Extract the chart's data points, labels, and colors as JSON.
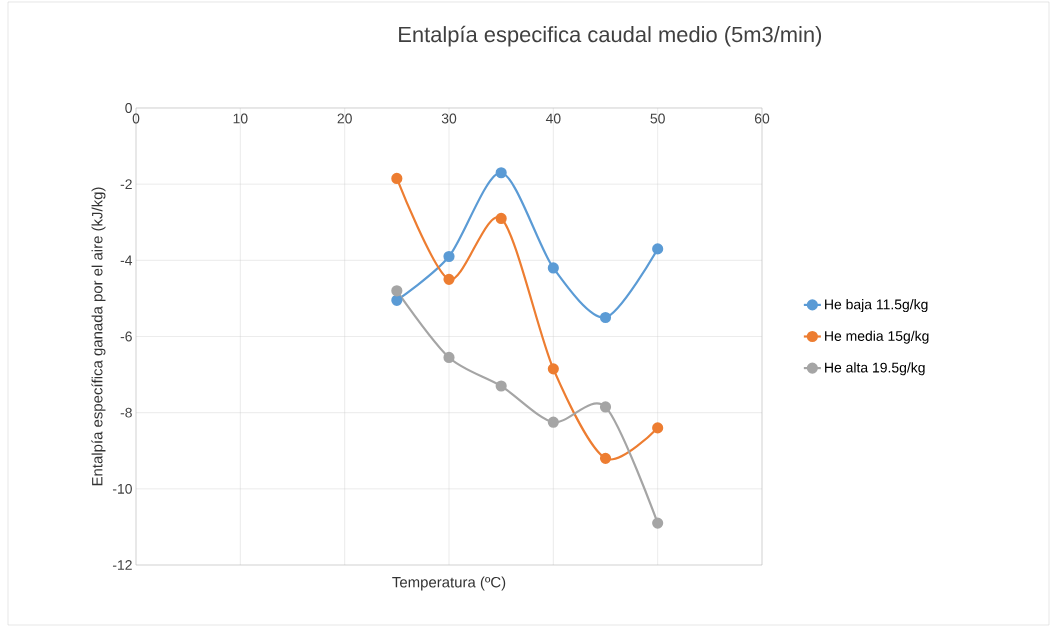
{
  "chart_data": {
    "type": "line",
    "title": "Entalpía especifica caudal medio (5m3/min)",
    "xlabel": "Temperatura (ºC)",
    "ylabel": "Entalpía específica ganada por el aire (kJ/kg)",
    "x": [
      25,
      30,
      35,
      40,
      45,
      50
    ],
    "series": [
      {
        "name": "He baja 11.5g/kg",
        "color": "#5b9bd5",
        "values": [
          -5.05,
          -3.9,
          -1.7,
          -4.2,
          -5.5,
          -3.7
        ]
      },
      {
        "name": "He media 15g/kg",
        "color": "#ed7d31",
        "values": [
          -1.85,
          -4.5,
          -2.9,
          -6.85,
          -9.2,
          -8.4
        ]
      },
      {
        "name": "He alta 19.5g/kg",
        "color": "#a5a5a5",
        "values": [
          -4.8,
          -6.55,
          -7.3,
          -8.25,
          -7.85,
          -10.9
        ]
      }
    ],
    "xlim": [
      0,
      60
    ],
    "xticks": [
      0,
      10,
      20,
      30,
      40,
      50,
      60
    ],
    "ylim": [
      -12,
      0
    ],
    "yticks": [
      -12,
      -10,
      -8,
      -6,
      -4,
      -2,
      0
    ],
    "grid": true,
    "legend": "right",
    "marker": "circle",
    "line_style": "solid"
  }
}
